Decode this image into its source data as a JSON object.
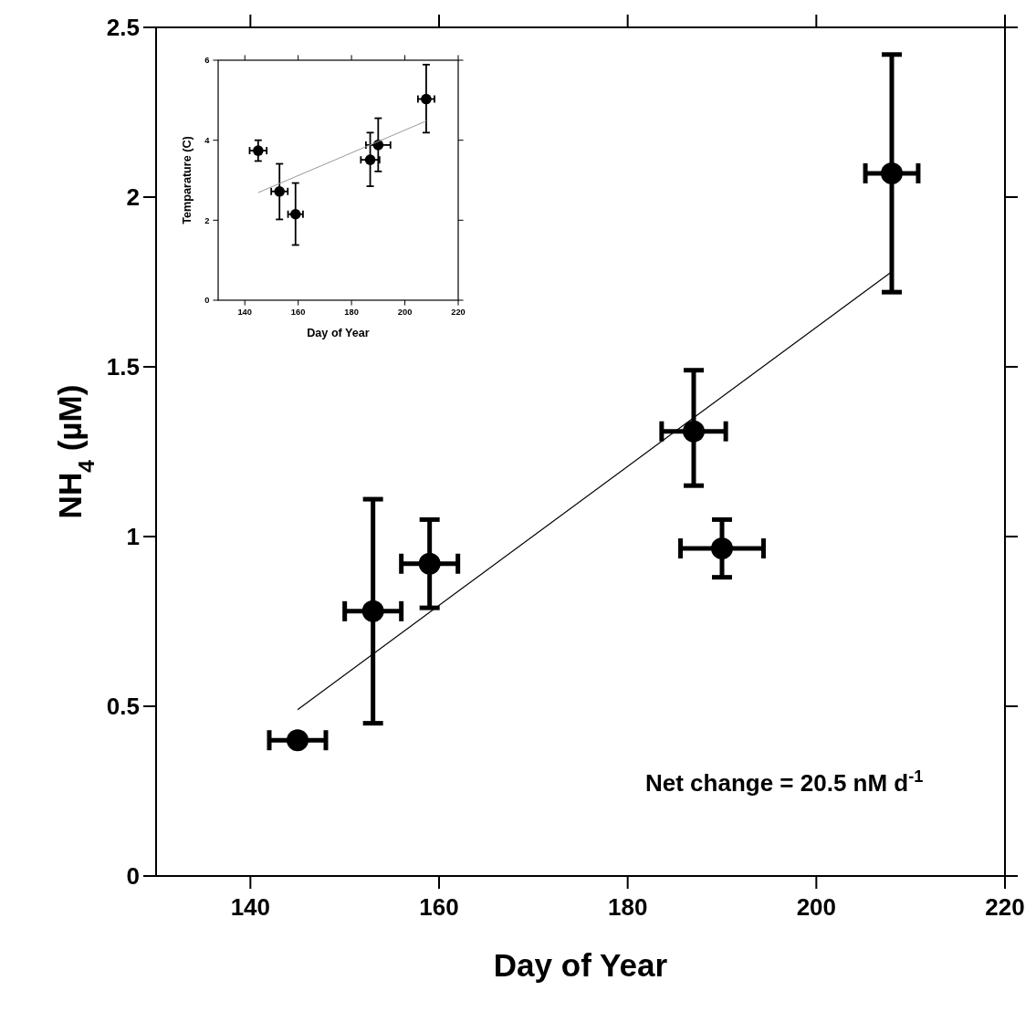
{
  "chart_data": [
    {
      "type": "scatter",
      "xlabel": "Day of Year",
      "ylabel": "NH$_{4}$ (µM)",
      "xlim": [
        130,
        220
      ],
      "ylim": [
        0,
        2.5
      ],
      "xticks": [
        140,
        160,
        180,
        200,
        220
      ],
      "yticks": [
        0,
        0.5,
        1,
        1.5,
        2,
        2.5
      ],
      "annotations": [
        "Net change = 20.5 nM d$^{-1}$"
      ],
      "series": [
        {
          "color": "#000000",
          "marker": "circle",
          "x": [
            145,
            153,
            159,
            187,
            190,
            208
          ],
          "values": [
            0.4,
            0.78,
            0.92,
            1.31,
            0.965,
            2.07
          ],
          "errors": [
            null,
            [
              0.45,
              1.11
            ],
            [
              0.79,
              1.05
            ],
            [
              1.15,
              1.49
            ],
            [
              0.88,
              1.05
            ],
            [
              1.72,
              2.42
            ]
          ],
          "xerrors": [
            3,
            3,
            3,
            3.4,
            4.4,
            2.8
          ]
        },
        {
          "type": "line",
          "color": "#000000",
          "x": [
            145,
            208
          ],
          "values": [
            0.49,
            1.78
          ]
        }
      ]
    },
    {
      "type": "scatter",
      "xlabel": "Day of Year",
      "ylabel": "Temparature (C)",
      "xlim": [
        130,
        220
      ],
      "ylim": [
        0,
        6
      ],
      "xticks": [
        140,
        160,
        180,
        200,
        220
      ],
      "yticks": [
        0,
        2,
        4,
        6
      ],
      "series": [
        {
          "color": "#000000",
          "marker": "circle",
          "x": [
            145,
            153,
            159,
            187,
            190,
            208
          ],
          "values": [
            3.74,
            2.72,
            2.15,
            3.51,
            3.88,
            5.03
          ],
          "errors": [
            [
              3.48,
              4.0
            ],
            [
              2.02,
              3.41
            ],
            [
              1.38,
              2.93
            ],
            [
              2.85,
              4.19
            ],
            [
              3.22,
              4.55
            ],
            [
              4.19,
              5.89
            ]
          ],
          "xerrors": [
            3.2,
            3.1,
            2.8,
            3.5,
            4.6,
            3.1
          ]
        },
        {
          "type": "line",
          "color": "#999999",
          "x": [
            145,
            208
          ],
          "values": [
            2.69,
            4.48
          ]
        }
      ]
    }
  ]
}
